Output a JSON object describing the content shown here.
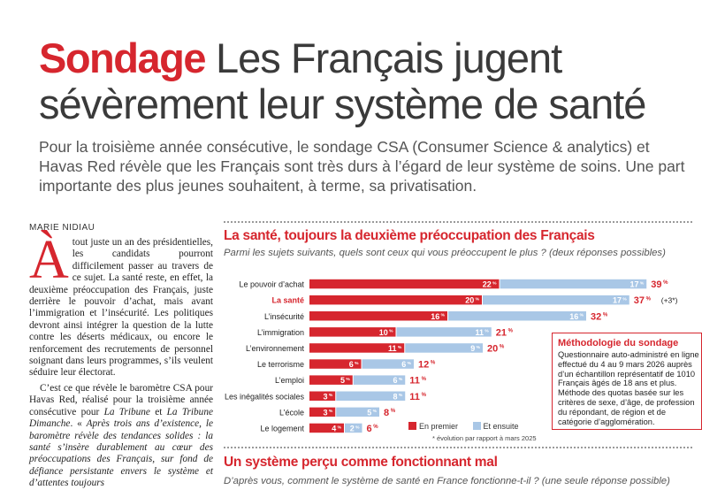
{
  "headline": {
    "kicker": "Sondage",
    "title": "Les Français jugent sévèrement leur système de santé"
  },
  "standfirst": "Pour la troisième année consécutive, le sondage CSA (Consumer Science & analytics) et Havas Red révèle que les Français sont très durs à l’égard de leur système de soins. Une part importante des plus jeunes souhaitent, à terme, sa privatisation.",
  "byline": "MARIE NIDIAU",
  "article": {
    "dropcap": "À",
    "p1": "tout juste un an des présidentielles, les candidats pourront difficilement passer au travers de ce sujet. La santé reste, en effet, la deuxième préoccupation des Français, juste derrière le pouvoir d’achat, mais avant l’immigration et l’insécurité. Les politiques devront ainsi intégrer la question de la lutte contre les déserts médicaux, ou encore le renforcement des recrutements de personnel soignant dans leurs programmes, s’ils veulent séduire leur électorat.",
    "p2_a": "C’est ce que révèle le baromètre CSA pour Havas Red, réalisé pour la troisième année consécutive pour ",
    "p2_b": "La Tribune",
    "p2_c": " et ",
    "p2_d": "La Tribune Dimanche",
    "p2_e": ". « ",
    "p2_f": "Après trois ans d’existence, le baromètre révèle des tendances solides : la santé s’insère durablement au cœur des préoccupations des Français, sur fond de défiance persistante envers le système et d’attentes toujours"
  },
  "chart_section": {
    "title": "La santé, toujours la deuxième préoccupation des Français",
    "subtitle": "Parmi les sujets suivants, quels sont ceux qui vous préoccupent le plus ? (deux réponses possibles)"
  },
  "chart_data": {
    "type": "bar",
    "stacked": true,
    "orientation": "horizontal",
    "categories": [
      "Le pouvoir d’achat",
      "La santé",
      "L’insécurité",
      "L’immigration",
      "L’environnement",
      "Le terrorisme",
      "L’emploi",
      "Les inégalités sociales",
      "L’école",
      "Le logement"
    ],
    "highlight_category": "La santé",
    "series": [
      {
        "name": "En premier",
        "color": "#d6262e",
        "values": [
          22,
          20,
          16,
          10,
          11,
          6,
          5,
          3,
          3,
          4
        ],
        "labels": [
          "22 %",
          "20 %",
          "16 %",
          "10 %",
          "11 %",
          "6 %",
          "5 %",
          "3 %",
          "3 %",
          "4 %"
        ]
      },
      {
        "name": "Et ensuite",
        "color": "#a9c7e6",
        "values": [
          17,
          17,
          16,
          11,
          9,
          6,
          6,
          8,
          5,
          2
        ],
        "labels": [
          "17 %",
          "17 %",
          "16 %",
          "11 %",
          "9 %",
          "6 %",
          "6 %",
          "8 %",
          "5 %",
          "2 %"
        ]
      }
    ],
    "totals": [
      39,
      37,
      32,
      21,
      20,
      12,
      11,
      11,
      8,
      6
    ],
    "total_labels": [
      "39 %",
      "37 %",
      "32 %",
      "21 %",
      "20 %",
      "12 %",
      "11 %",
      "11 %",
      "8 %",
      "6 %"
    ],
    "annotations": [
      {
        "category": "La santé",
        "text": "(+3*)"
      }
    ],
    "note": "* évolution par rapport à mars 2025"
  },
  "methodology": {
    "title": "Méthodologie du sondage",
    "text": "Questionnaire auto-administré en ligne effectué du 4 au 9 mars 2026 auprès d’un échantillon représentatif de 1010 Français âgés de 18 ans et plus. Méthode des quotas basée sur les critères de sexe, d’âge, de profession du répondant, de région et de catégorie d’agglomération."
  },
  "section2": {
    "title": "Un système perçu comme fonctionnant mal",
    "subtitle": "D’après vous, comment le système de santé en France fonctionne-t-il ? (une seule réponse possible)"
  },
  "colors": {
    "accent": "#d6262e",
    "secondary": "#a9c7e6"
  }
}
